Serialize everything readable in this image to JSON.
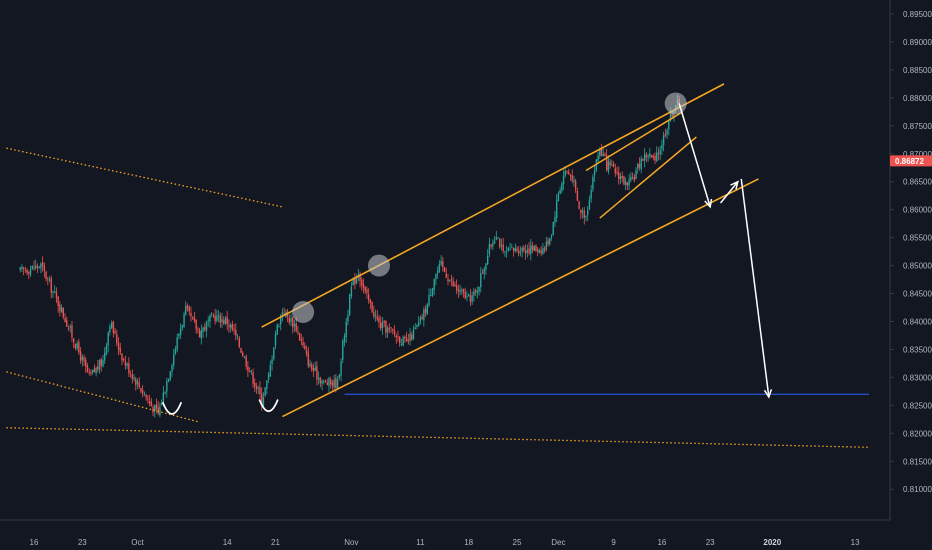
{
  "chart_data": {
    "type": "candlestick",
    "title": "",
    "xlabel": "",
    "ylabel": "",
    "ylim": [
      0.8045,
      0.8975
    ],
    "y_ticks": [
      "0.89500",
      "0.89000",
      "0.88500",
      "0.88000",
      "0.87500",
      "0.87000",
      "0.86500",
      "0.86000",
      "0.85500",
      "0.85000",
      "0.84500",
      "0.84000",
      "0.83500",
      "0.83000",
      "0.82500",
      "0.82000",
      "0.81500",
      "0.81000",
      "0.80500"
    ],
    "x_ticks": [
      {
        "label": "16",
        "day": 0,
        "bold": false
      },
      {
        "label": "23",
        "day": 7,
        "bold": false
      },
      {
        "label": "Oct",
        "day": 15,
        "bold": false
      },
      {
        "label": "14",
        "day": 28,
        "bold": false
      },
      {
        "label": "21",
        "day": 35,
        "bold": false
      },
      {
        "label": "Nov",
        "day": 46,
        "bold": false
      },
      {
        "label": "11",
        "day": 56,
        "bold": false
      },
      {
        "label": "18",
        "day": 63,
        "bold": false
      },
      {
        "label": "25",
        "day": 70,
        "bold": false
      },
      {
        "label": "Dec",
        "day": 76,
        "bold": false
      },
      {
        "label": "9",
        "day": 84,
        "bold": false
      },
      {
        "label": "16",
        "day": 91,
        "bold": false
      },
      {
        "label": "23",
        "day": 98,
        "bold": false
      },
      {
        "label": "2020",
        "day": 107,
        "bold": true
      },
      {
        "label": "13",
        "day": 119,
        "bold": false
      }
    ],
    "last_price": "0.86872",
    "colors": {
      "background": "#131722",
      "up": "#26a69a",
      "down": "#ef5350",
      "trendline": "#f5a623",
      "support": "#2962ff",
      "arrows": "#ffffff",
      "badge": "#ef5350"
    },
    "swing_points": [
      {
        "day": -2,
        "price": 0.849
      },
      {
        "day": 1,
        "price": 0.85
      },
      {
        "day": 4,
        "price": 0.842
      },
      {
        "day": 6,
        "price": 0.836
      },
      {
        "day": 8,
        "price": 0.83
      },
      {
        "day": 10,
        "price": 0.833
      },
      {
        "day": 11,
        "price": 0.84
      },
      {
        "day": 13,
        "price": 0.833
      },
      {
        "day": 15,
        "price": 0.829
      },
      {
        "day": 17,
        "price": 0.825
      },
      {
        "day": 18,
        "price": 0.8235
      },
      {
        "day": 20,
        "price": 0.833
      },
      {
        "day": 21,
        "price": 0.838
      },
      {
        "day": 22,
        "price": 0.842
      },
      {
        "day": 24,
        "price": 0.838
      },
      {
        "day": 26,
        "price": 0.841
      },
      {
        "day": 28,
        "price": 0.84
      },
      {
        "day": 29,
        "price": 0.838
      },
      {
        "day": 31,
        "price": 0.832
      },
      {
        "day": 33,
        "price": 0.826
      },
      {
        "day": 34,
        "price": 0.83
      },
      {
        "day": 35,
        "price": 0.838
      },
      {
        "day": 36,
        "price": 0.842
      },
      {
        "day": 38,
        "price": 0.839
      },
      {
        "day": 40,
        "price": 0.832
      },
      {
        "day": 42,
        "price": 0.829
      },
      {
        "day": 44,
        "price": 0.829
      },
      {
        "day": 45,
        "price": 0.838
      },
      {
        "day": 46,
        "price": 0.846
      },
      {
        "day": 47,
        "price": 0.849
      },
      {
        "day": 48,
        "price": 0.845
      },
      {
        "day": 50,
        "price": 0.8395
      },
      {
        "day": 52,
        "price": 0.838
      },
      {
        "day": 54,
        "price": 0.836
      },
      {
        "day": 56,
        "price": 0.84
      },
      {
        "day": 57,
        "price": 0.843
      },
      {
        "day": 58,
        "price": 0.848
      },
      {
        "day": 59,
        "price": 0.85
      },
      {
        "day": 61,
        "price": 0.846
      },
      {
        "day": 63,
        "price": 0.844
      },
      {
        "day": 64,
        "price": 0.845
      },
      {
        "day": 65,
        "price": 0.849
      },
      {
        "day": 66,
        "price": 0.853
      },
      {
        "day": 67,
        "price": 0.856
      },
      {
        "day": 68,
        "price": 0.852
      },
      {
        "day": 70,
        "price": 0.853
      },
      {
        "day": 72,
        "price": 0.853
      },
      {
        "day": 74,
        "price": 0.853
      },
      {
        "day": 75,
        "price": 0.856
      },
      {
        "day": 76,
        "price": 0.863
      },
      {
        "day": 77,
        "price": 0.867
      },
      {
        "day": 78,
        "price": 0.866
      },
      {
        "day": 79,
        "price": 0.86
      },
      {
        "day": 80,
        "price": 0.859
      },
      {
        "day": 81,
        "price": 0.866
      },
      {
        "day": 82,
        "price": 0.871
      },
      {
        "day": 83,
        "price": 0.868
      },
      {
        "day": 85,
        "price": 0.866
      },
      {
        "day": 86,
        "price": 0.864
      },
      {
        "day": 87,
        "price": 0.866
      },
      {
        "day": 88,
        "price": 0.869
      },
      {
        "day": 89,
        "price": 0.87
      },
      {
        "day": 90,
        "price": 0.8685
      },
      {
        "day": 91,
        "price": 0.872
      },
      {
        "day": 92,
        "price": 0.876
      },
      {
        "day": 93,
        "price": 0.879
      },
      {
        "day": 93.5,
        "price": 0.8787
      }
    ],
    "drawings": {
      "channel_upper": {
        "from": {
          "day": 33,
          "price": 0.839
        },
        "to": {
          "day": 100,
          "price": 0.8825
        }
      },
      "channel_lower": {
        "from": {
          "day": 36,
          "price": 0.823
        },
        "to": {
          "day": 105,
          "price": 0.8655
        }
      },
      "wedge_upper": {
        "from": {
          "day": 80,
          "price": 0.867
        },
        "to": {
          "day": 94,
          "price": 0.8775
        }
      },
      "wedge_lower": {
        "from": {
          "day": 82,
          "price": 0.8585
        },
        "to": {
          "day": 96,
          "price": 0.873
        }
      },
      "dotted_top": {
        "from": {
          "day": -4,
          "price": 0.871
        },
        "to": {
          "day": 36,
          "price": 0.8605
        }
      },
      "dotted_mid": {
        "from": {
          "day": -4,
          "price": 0.831
        },
        "to": {
          "day": 24,
          "price": 0.822
        }
      },
      "dotted_bottom": {
        "from": {
          "day": -4,
          "price": 0.821
        },
        "to": {
          "day": 121,
          "price": 0.8175
        }
      },
      "support_line": {
        "from": {
          "day": 45,
          "price": 0.827
        },
        "to": {
          "day": 121,
          "price": 0.827
        }
      },
      "highlight_circles": [
        {
          "day": 39,
          "price": 0.8417
        },
        {
          "day": 50,
          "price": 0.85
        },
        {
          "day": 93,
          "price": 0.879
        }
      ],
      "u_marks": [
        {
          "day": 20,
          "price": 0.824
        },
        {
          "day": 34,
          "price": 0.8245
        }
      ],
      "arrows": [
        {
          "from": {
            "day": 93.5,
            "price": 0.879
          },
          "to": {
            "day": 98,
            "price": 0.8605
          }
        },
        {
          "from": {
            "day": 99.5,
            "price": 0.8612
          },
          "to": {
            "day": 102,
            "price": 0.865
          }
        },
        {
          "from": {
            "day": 102.5,
            "price": 0.8655
          },
          "to": {
            "day": 106.5,
            "price": 0.8265
          }
        }
      ]
    }
  }
}
